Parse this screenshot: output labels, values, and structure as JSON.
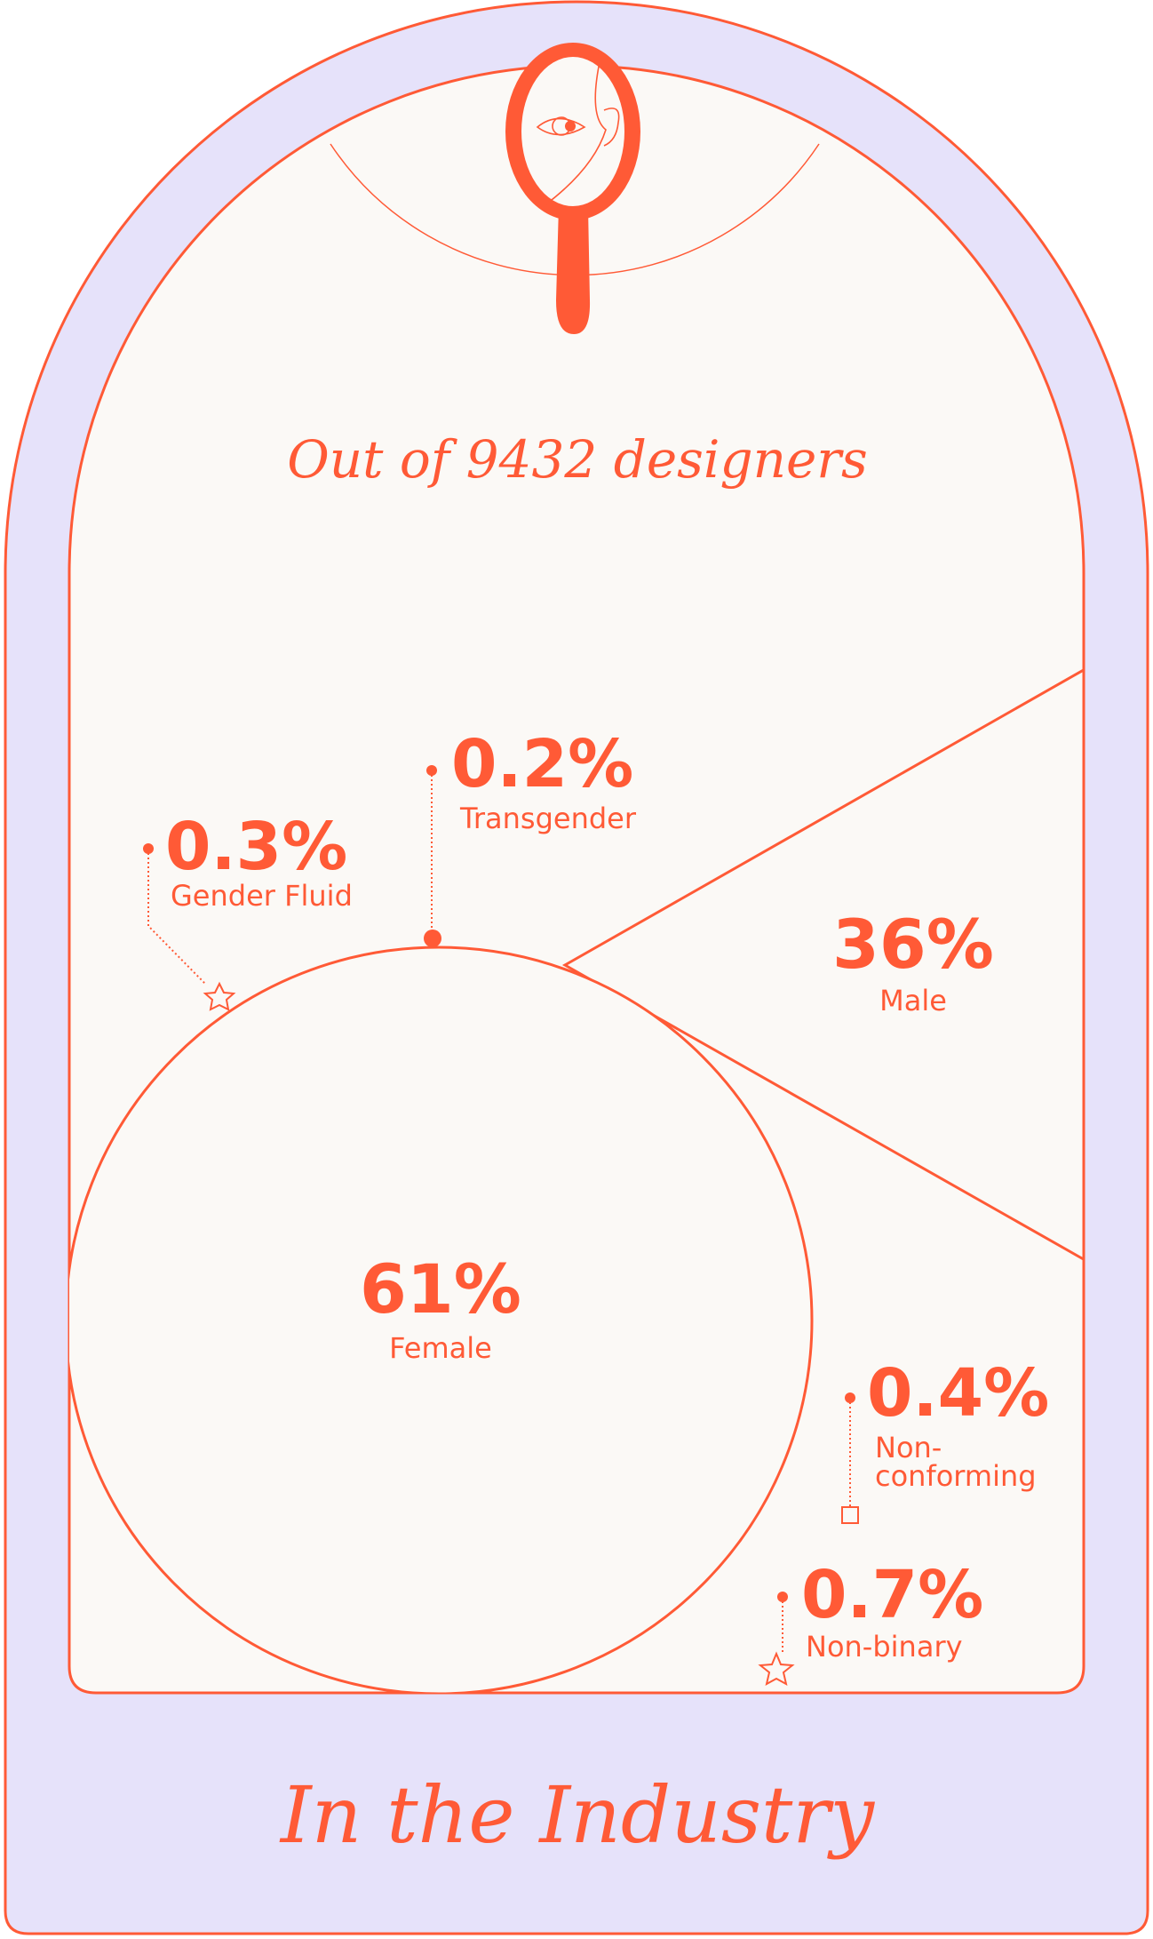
{
  "colors": {
    "accent": "#ff5a36",
    "frame_fill": "#e6e2fa",
    "panel_fill": "#fbf9f6"
  },
  "header": {
    "icon": "hand-mirror-icon",
    "subtitle": "Out of 9432 designers"
  },
  "footer": {
    "title": "In the Industry"
  },
  "chart_data": {
    "type": "pie",
    "title": "",
    "slices": [
      {
        "key": "female",
        "label": "Female",
        "value": 61,
        "value_label": "61%",
        "shape": "circle"
      },
      {
        "key": "male",
        "label": "Male",
        "value": 36,
        "value_label": "36%",
        "shape": "wedge"
      },
      {
        "key": "non_binary",
        "label": "Non-binary",
        "value": 0.7,
        "value_label": "0.7%",
        "marker": "star"
      },
      {
        "key": "non_conforming",
        "label_lines": [
          "Non-",
          "conforming"
        ],
        "value": 0.4,
        "value_label": "0.4%",
        "marker": "square"
      },
      {
        "key": "gender_fluid",
        "label": "Gender Fluid",
        "value": 0.3,
        "value_label": "0.3%",
        "marker": "star"
      },
      {
        "key": "transgender",
        "label": "Transgender",
        "value": 0.2,
        "value_label": "0.2%",
        "marker": "dot"
      }
    ]
  }
}
